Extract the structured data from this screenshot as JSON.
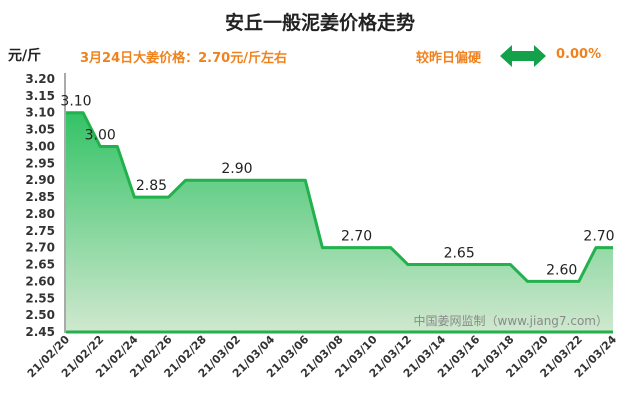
{
  "header": {
    "title": "安丘一般泥姜价格走势",
    "unit": "元/斤",
    "price_note": "3月24日大姜价格：2.70元/斤左右",
    "change_label": "较昨日偏硬",
    "change_value": "0.00%"
  },
  "watermark": "中国姜网监制（www.jiang7.com）",
  "colors": {
    "line": "#22b14c",
    "fill_top": "#34c366",
    "fill_bottom": "#d0e8cf",
    "accent": "#f0821e",
    "arrow": "#15a04a"
  },
  "chart_data": {
    "type": "area",
    "title": "安丘一般泥姜价格走势",
    "ylabel": "元/斤",
    "ylim": [
      2.45,
      3.2
    ],
    "yticks": [
      "2.45",
      "2.50",
      "2.55",
      "2.60",
      "2.65",
      "2.70",
      "2.75",
      "2.80",
      "2.85",
      "2.90",
      "2.95",
      "3.00",
      "3.05",
      "3.10",
      "3.15",
      "3.20"
    ],
    "xticks": [
      "21/02/20",
      "21/02/22",
      "21/02/24",
      "21/02/26",
      "21/02/28",
      "21/03/02",
      "21/03/04",
      "21/03/06",
      "21/03/08",
      "21/03/10",
      "21/03/12",
      "21/03/14",
      "21/03/16",
      "21/03/18",
      "21/03/20",
      "21/03/22",
      "21/03/24"
    ],
    "x": [
      "21/02/20",
      "21/02/21",
      "21/02/22",
      "21/02/23",
      "21/02/24",
      "21/02/25",
      "21/02/26",
      "21/02/27",
      "21/02/28",
      "21/03/01",
      "21/03/02",
      "21/03/03",
      "21/03/04",
      "21/03/05",
      "21/03/06",
      "21/03/07",
      "21/03/08",
      "21/03/09",
      "21/03/10",
      "21/03/11",
      "21/03/12",
      "21/03/13",
      "21/03/14",
      "21/03/15",
      "21/03/16",
      "21/03/17",
      "21/03/18",
      "21/03/19",
      "21/03/20",
      "21/03/21",
      "21/03/22",
      "21/03/23",
      "21/03/24"
    ],
    "values": [
      3.1,
      3.1,
      3.0,
      3.0,
      2.85,
      2.85,
      2.85,
      2.9,
      2.9,
      2.9,
      2.9,
      2.9,
      2.9,
      2.9,
      2.9,
      2.7,
      2.7,
      2.7,
      2.7,
      2.7,
      2.65,
      2.65,
      2.65,
      2.65,
      2.65,
      2.65,
      2.65,
      2.6,
      2.6,
      2.6,
      2.6,
      2.7,
      2.7
    ],
    "data_labels": [
      {
        "index": 0,
        "text": "3.10"
      },
      {
        "index": 2,
        "text": "3.00"
      },
      {
        "index": 5,
        "text": "2.85"
      },
      {
        "index": 10,
        "text": "2.90"
      },
      {
        "index": 17,
        "text": "2.70"
      },
      {
        "index": 23,
        "text": "2.65"
      },
      {
        "index": 29,
        "text": "2.60"
      },
      {
        "index": 32,
        "text": "2.70"
      }
    ],
    "grid": false,
    "legend": "none"
  }
}
